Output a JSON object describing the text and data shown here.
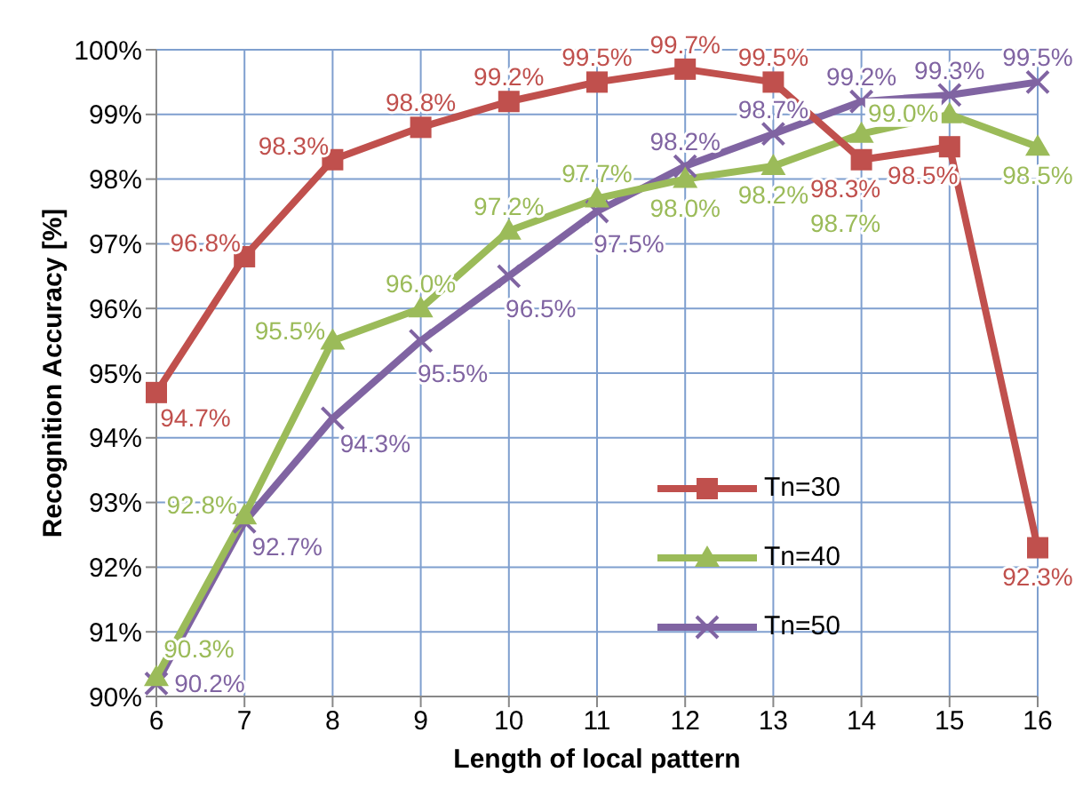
{
  "chart_data": {
    "type": "line",
    "xlabel": "Length of local pattern",
    "ylabel": "Recognition Accuracy [%]",
    "categories": [
      "6",
      "7",
      "8",
      "9",
      "10",
      "11",
      "12",
      "13",
      "14",
      "15",
      "16"
    ],
    "ylim": [
      90,
      100
    ],
    "yticks": [
      {
        "value": 90,
        "label": "90%"
      },
      {
        "value": 91,
        "label": "91%"
      },
      {
        "value": 92,
        "label": "92%"
      },
      {
        "value": 93,
        "label": "93%"
      },
      {
        "value": 94,
        "label": "94%"
      },
      {
        "value": 95,
        "label": "95%"
      },
      {
        "value": 96,
        "label": "96%"
      },
      {
        "value": 97,
        "label": "97%"
      },
      {
        "value": 98,
        "label": "98%"
      },
      {
        "value": 99,
        "label": "99%"
      },
      {
        "value": 100,
        "label": "100%"
      }
    ],
    "grid": true,
    "legend": "bottom right",
    "line_style": "solid",
    "series": [
      {
        "name": "Tn=30",
        "color": "#c0504d",
        "marker": "square",
        "values": [
          94.7,
          96.8,
          98.3,
          98.8,
          99.2,
          99.5,
          99.7,
          99.5,
          98.3,
          98.5,
          92.3
        ],
        "value_labels": [
          "94.7%",
          "96.8%",
          "98.3%",
          "98.8%",
          "99.2%",
          "99.5%",
          "99.7%",
          "99.5%",
          "98.3%",
          "98.5%",
          "92.3%"
        ]
      },
      {
        "name": "Tn=40",
        "color": "#9bbb59",
        "marker": "triangle",
        "values": [
          90.3,
          92.8,
          95.5,
          96.0,
          97.2,
          97.7,
          98.0,
          98.2,
          98.7,
          99.0,
          98.5
        ],
        "value_labels": [
          "90.3%",
          "92.8%",
          "95.5%",
          "96.0%",
          "97.2%",
          "97.7%",
          "98.0%",
          "98.2%",
          "98.7%",
          "99.0%",
          "98.5%"
        ]
      },
      {
        "name": "Tn=50",
        "color": "#8064a2",
        "marker": "cross",
        "values": [
          90.2,
          92.7,
          94.3,
          95.5,
          96.5,
          97.5,
          98.2,
          98.7,
          99.2,
          99.3,
          99.5
        ],
        "value_labels": [
          "90.2%",
          "92.7%",
          "94.3%",
          "95.5%",
          "96.5%",
          "97.5%",
          "98.2%",
          "98.7%",
          "99.2%",
          "99.3%",
          "99.5%"
        ]
      }
    ]
  }
}
